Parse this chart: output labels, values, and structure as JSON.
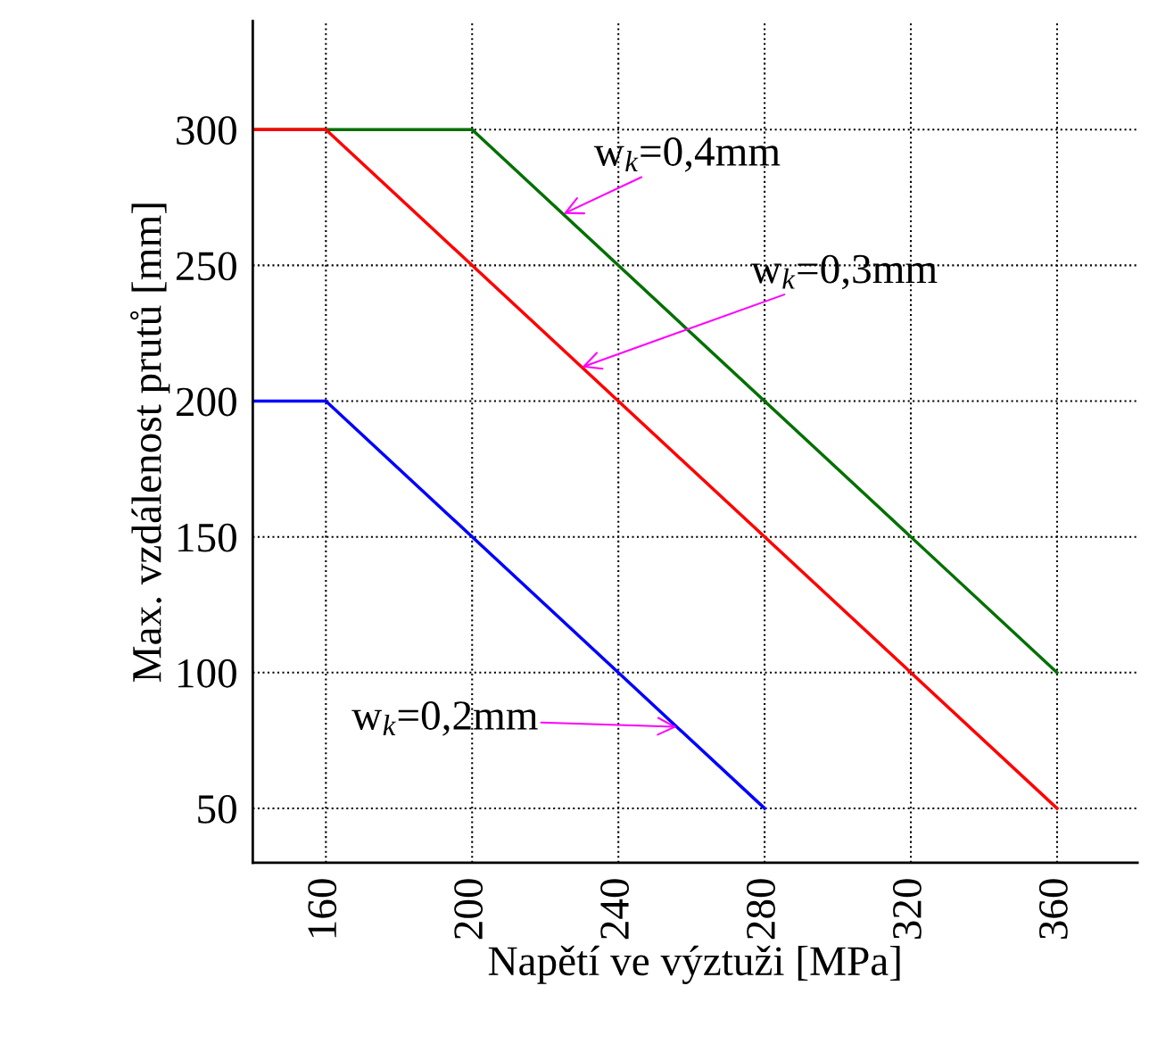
{
  "chart_data": {
    "type": "line",
    "xlabel": "Napětí ve výztuži [MPa]",
    "ylabel": "Max. vzdálenost prutů [mm]",
    "series": [
      {
        "color": "#007000",
        "x": [
          140,
          200,
          360
        ],
        "values": [
          300,
          300,
          100
        ]
      },
      {
        "color": "#ff0000",
        "x": [
          140,
          160,
          360
        ],
        "values": [
          300,
          300,
          50
        ]
      },
      {
        "color": "#0000ff",
        "x": [
          140,
          160,
          280
        ],
        "values": [
          200,
          200,
          50
        ]
      }
    ],
    "annotations": [
      {
        "text": "w$_{k}$=0,4mm",
        "x": 225,
        "y": 269
      },
      {
        "text": "w$_{k}$=0,3mm",
        "x": 230,
        "y": 212.5
      },
      {
        "text": "w$_{k}$=0,2mm",
        "x": 256,
        "y": 80
      }
    ],
    "xlim": [
      140,
      382
    ],
    "ylim": [
      30,
      340
    ],
    "xticks": [
      160,
      200,
      240,
      280,
      320,
      360
    ],
    "yticks": [
      50,
      100,
      150,
      200,
      250,
      300
    ],
    "grid": true,
    "line_style": "solid",
    "marker": "none",
    "legend": false
  }
}
